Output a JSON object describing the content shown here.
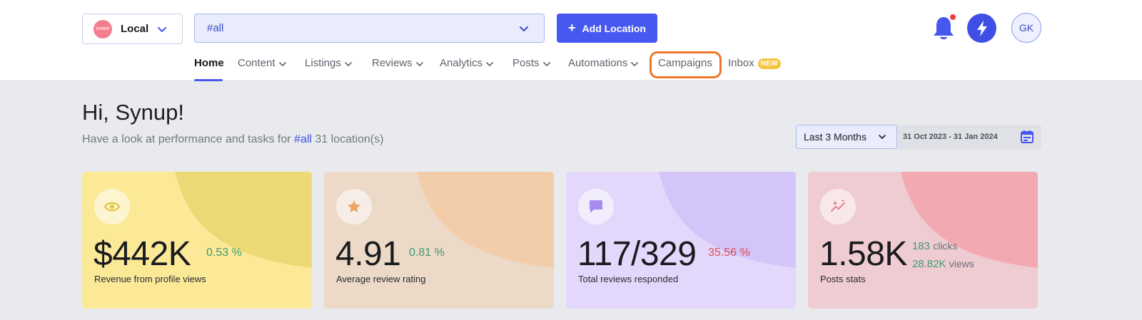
{
  "header": {
    "location_select": {
      "logo_text": "SYNUP",
      "label": "Local"
    },
    "group_select": {
      "value": "#all"
    },
    "add_location_label": "Add Location",
    "avatar_initials": "GK"
  },
  "nav": {
    "items": [
      {
        "label": "Home",
        "active": true,
        "has_dropdown": false
      },
      {
        "label": "Content",
        "has_dropdown": true
      },
      {
        "label": "Listings",
        "has_dropdown": true
      },
      {
        "label": "Reviews",
        "has_dropdown": true
      },
      {
        "label": "Analytics",
        "has_dropdown": true
      },
      {
        "label": "Posts",
        "has_dropdown": true
      },
      {
        "label": "Automations",
        "has_dropdown": true
      },
      {
        "label": "Campaigns",
        "has_dropdown": false,
        "highlighted": true
      },
      {
        "label": "Inbox",
        "has_dropdown": false,
        "badge": "NEW"
      }
    ]
  },
  "greeting": {
    "title": "Hi, Synup!",
    "subtitle_prefix": "Have a look at performance and tasks for",
    "subtitle_highlight": "#all",
    "subtitle_suffix": "31 location(s)"
  },
  "date_filter": {
    "range_label": "Last 3 Months",
    "date_range": "31 Oct 2023 - 31 Jan 2024"
  },
  "cards": [
    {
      "icon": "eye-icon",
      "value": "$442K",
      "change": "0.53 %",
      "change_type": "positive",
      "label": "Revenue from profile views",
      "bg": "#fbe998",
      "blob": "#ecd875",
      "icon_color": "#e2c84a"
    },
    {
      "icon": "star-icon",
      "value": "4.91",
      "change": "0.81 %",
      "change_type": "positive",
      "label": "Average review rating",
      "bg": "#ecd9c7",
      "blob": "#f3cda9",
      "icon_color": "#eba567"
    },
    {
      "icon": "chat-icon",
      "value": "117/329",
      "change": "35.56 %",
      "change_type": "negative",
      "label": "Total reviews responded",
      "bg": "#e3d8fb",
      "blob": "#d3c4fa",
      "icon_color": "#a88cef"
    },
    {
      "icon": "sparkle-trend-icon",
      "value": "1.58K",
      "label": "Posts stats",
      "clicks": "183",
      "clicks_unit": "clicks",
      "views": "28.82K",
      "views_unit": "views",
      "bg": "#efccd2",
      "blob": "#f3a9b2",
      "icon_color": "#ea8592"
    }
  ],
  "colors": {
    "accent": "#4758f0",
    "highlight_ring": "#f0772a",
    "notification_dot": "#ef3b4b",
    "positive": "#3f9a73",
    "negative": "#e04a52"
  }
}
